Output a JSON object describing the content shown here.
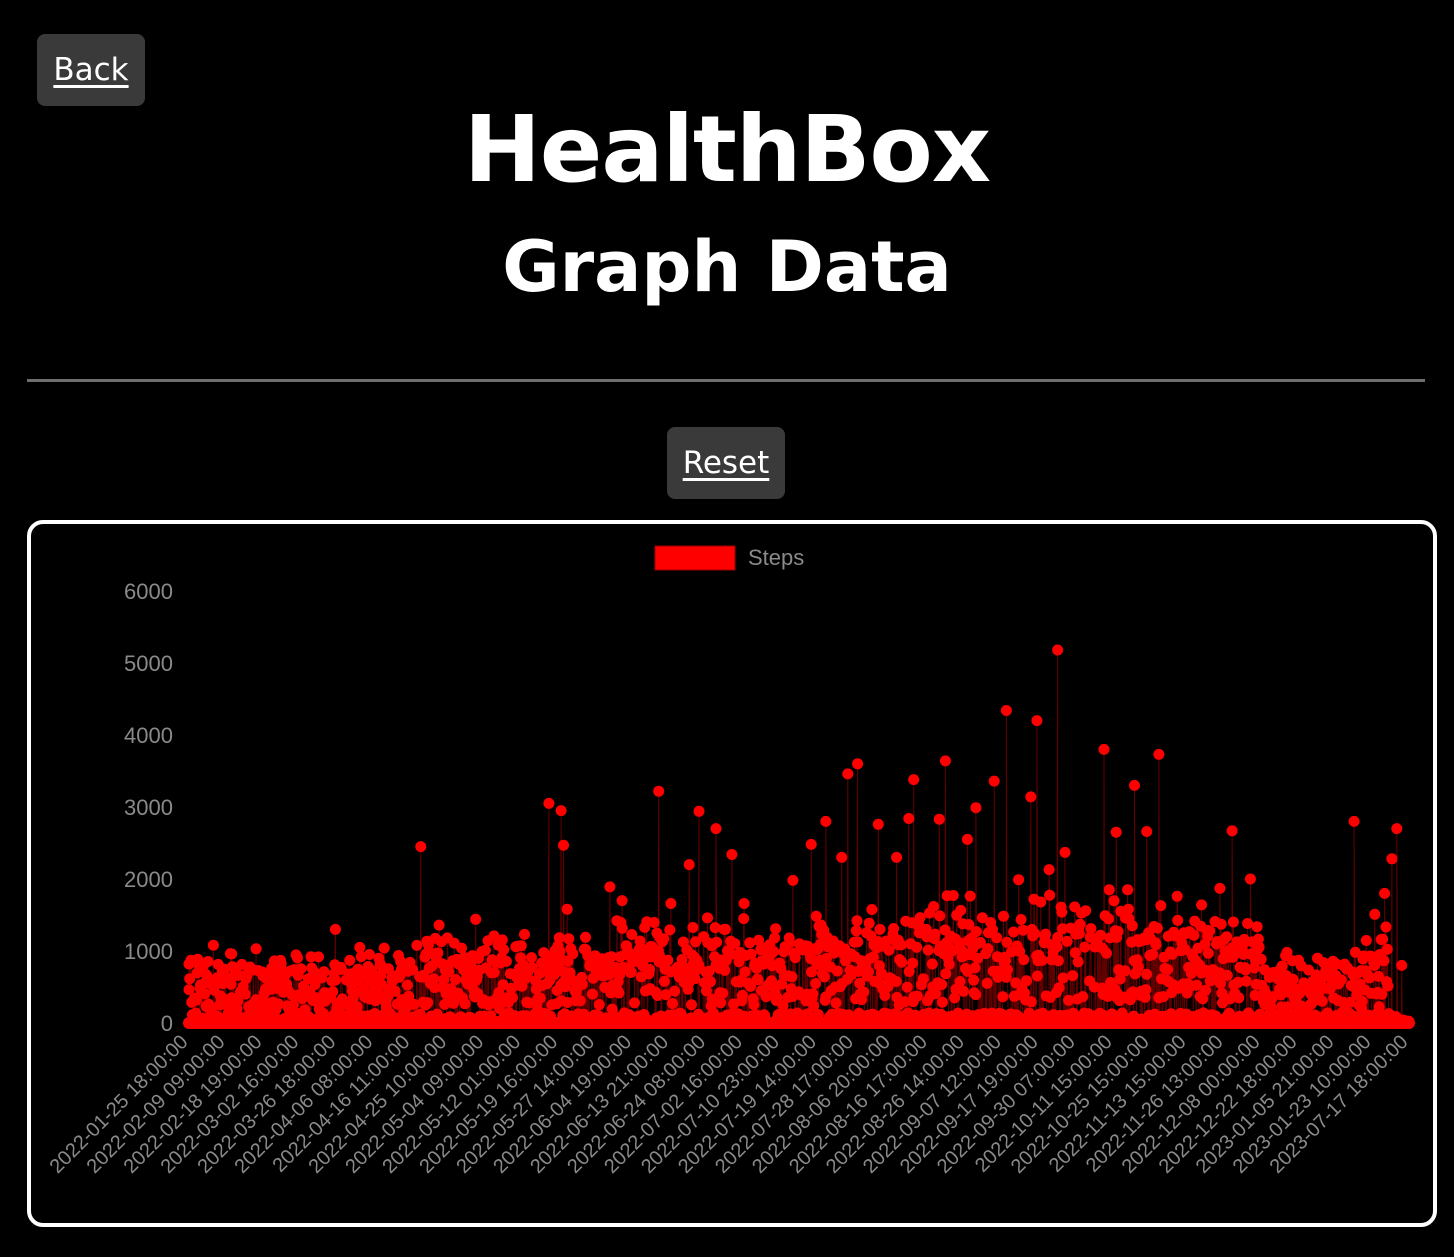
{
  "header": {
    "back_label": "Back",
    "title": "HealthBox",
    "subtitle": "Graph Data",
    "reset_label": "Reset"
  },
  "colors": {
    "background": "#000000",
    "button_bg": "#3a3a3a",
    "series": "#ff0000",
    "axis_text": "#8a8a8a",
    "chart_border": "#ffffff"
  },
  "chart_data": {
    "type": "line",
    "legend": {
      "position": "top",
      "entries": [
        "Steps"
      ]
    },
    "grid": false,
    "xlabel": "",
    "ylabel": "",
    "ylim": [
      0,
      6000
    ],
    "yticks": [
      0,
      1000,
      2000,
      3000,
      4000,
      5000,
      6000
    ],
    "x_tick_labels": [
      "2022-01-25 18:00:00",
      "2022-02-09 09:00:00",
      "2022-02-18 19:00:00",
      "2022-03-02 16:00:00",
      "2022-03-26 18:00:00",
      "2022-04-06 08:00:00",
      "2022-04-16 11:00:00",
      "2022-04-25 10:00:00",
      "2022-05-04 09:00:00",
      "2022-05-12 01:00:00",
      "2022-05-19 16:00:00",
      "2022-05-27 14:00:00",
      "2022-06-04 19:00:00",
      "2022-06-13 21:00:00",
      "2022-06-24 08:00:00",
      "2022-07-02 16:00:00",
      "2022-07-10 23:00:00",
      "2022-07-19 14:00:00",
      "2022-07-28 17:00:00",
      "2022-08-06 20:00:00",
      "2022-08-16 17:00:00",
      "2022-08-26 14:00:00",
      "2022-09-07 12:00:00",
      "2022-09-17 19:00:00",
      "2022-09-30 07:00:00",
      "2022-10-11 15:00:00",
      "2022-10-25 15:00:00",
      "2022-11-13 15:00:00",
      "2022-11-26 13:00:00",
      "2022-12-08 00:00:00",
      "2022-12-22 18:00:00",
      "2023-01-05 21:00:00",
      "2023-01-23 10:00:00",
      "2023-07-17 18:00:00"
    ],
    "series": [
      {
        "name": "Steps",
        "color": "#ff0000",
        "peaks": [
          {
            "at": 0.0,
            "y": 820
          },
          {
            "at": 0.02,
            "y": 1080
          },
          {
            "at": 0.035,
            "y": 960
          },
          {
            "at": 0.055,
            "y": 1030
          },
          {
            "at": 0.075,
            "y": 870
          },
          {
            "at": 0.1,
            "y": 920
          },
          {
            "at": 0.12,
            "y": 1300
          },
          {
            "at": 0.14,
            "y": 1050
          },
          {
            "at": 0.16,
            "y": 1040
          },
          {
            "at": 0.19,
            "y": 2450
          },
          {
            "at": 0.205,
            "y": 1360
          },
          {
            "at": 0.235,
            "y": 1440
          },
          {
            "at": 0.25,
            "y": 1210
          },
          {
            "at": 0.275,
            "y": 1230
          },
          {
            "at": 0.295,
            "y": 3050
          },
          {
            "at": 0.305,
            "y": 2950
          },
          {
            "at": 0.307,
            "y": 2470
          },
          {
            "at": 0.31,
            "y": 1580
          },
          {
            "at": 0.325,
            "y": 1190
          },
          {
            "at": 0.345,
            "y": 1890
          },
          {
            "at": 0.355,
            "y": 1700
          },
          {
            "at": 0.37,
            "y": 1050
          },
          {
            "at": 0.385,
            "y": 3220
          },
          {
            "at": 0.395,
            "y": 1660
          },
          {
            "at": 0.41,
            "y": 2200
          },
          {
            "at": 0.418,
            "y": 2940
          },
          {
            "at": 0.425,
            "y": 1460
          },
          {
            "at": 0.432,
            "y": 2700
          },
          {
            "at": 0.445,
            "y": 2340
          },
          {
            "at": 0.455,
            "y": 1660
          },
          {
            "at": 0.48,
            "y": 1180
          },
          {
            "at": 0.495,
            "y": 1980
          },
          {
            "at": 0.51,
            "y": 2480
          },
          {
            "at": 0.522,
            "y": 2800
          },
          {
            "at": 0.535,
            "y": 2300
          },
          {
            "at": 0.54,
            "y": 3460
          },
          {
            "at": 0.548,
            "y": 3600
          },
          {
            "at": 0.565,
            "y": 2760
          },
          {
            "at": 0.58,
            "y": 2300
          },
          {
            "at": 0.59,
            "y": 2840
          },
          {
            "at": 0.594,
            "y": 3380
          },
          {
            "at": 0.615,
            "y": 2830
          },
          {
            "at": 0.62,
            "y": 3640
          },
          {
            "at": 0.638,
            "y": 2550
          },
          {
            "at": 0.645,
            "y": 2990
          },
          {
            "at": 0.66,
            "y": 3360
          },
          {
            "at": 0.67,
            "y": 4340
          },
          {
            "at": 0.68,
            "y": 1990
          },
          {
            "at": 0.69,
            "y": 3140
          },
          {
            "at": 0.695,
            "y": 4200
          },
          {
            "at": 0.705,
            "y": 2130
          },
          {
            "at": 0.712,
            "y": 5180
          },
          {
            "at": 0.718,
            "y": 2370
          },
          {
            "at": 0.735,
            "y": 1560
          },
          {
            "at": 0.75,
            "y": 3800
          },
          {
            "at": 0.76,
            "y": 2650
          },
          {
            "at": 0.77,
            "y": 1580
          },
          {
            "at": 0.775,
            "y": 3300
          },
          {
            "at": 0.785,
            "y": 2660
          },
          {
            "at": 0.795,
            "y": 3730
          },
          {
            "at": 0.81,
            "y": 1760
          },
          {
            "at": 0.83,
            "y": 1640
          },
          {
            "at": 0.845,
            "y": 1870
          },
          {
            "at": 0.855,
            "y": 2670
          },
          {
            "at": 0.87,
            "y": 2000
          },
          {
            "at": 0.9,
            "y": 980
          },
          {
            "at": 0.925,
            "y": 900
          },
          {
            "at": 0.94,
            "y": 660
          },
          {
            "at": 0.955,
            "y": 2800
          },
          {
            "at": 0.963,
            "y": 930
          },
          {
            "at": 0.972,
            "y": 1510
          },
          {
            "at": 0.98,
            "y": 1800
          },
          {
            "at": 0.986,
            "y": 2280
          },
          {
            "at": 0.99,
            "y": 2700
          },
          {
            "at": 0.994,
            "y": 800
          },
          {
            "at": 1.0,
            "y": 0
          }
        ]
      }
    ]
  }
}
